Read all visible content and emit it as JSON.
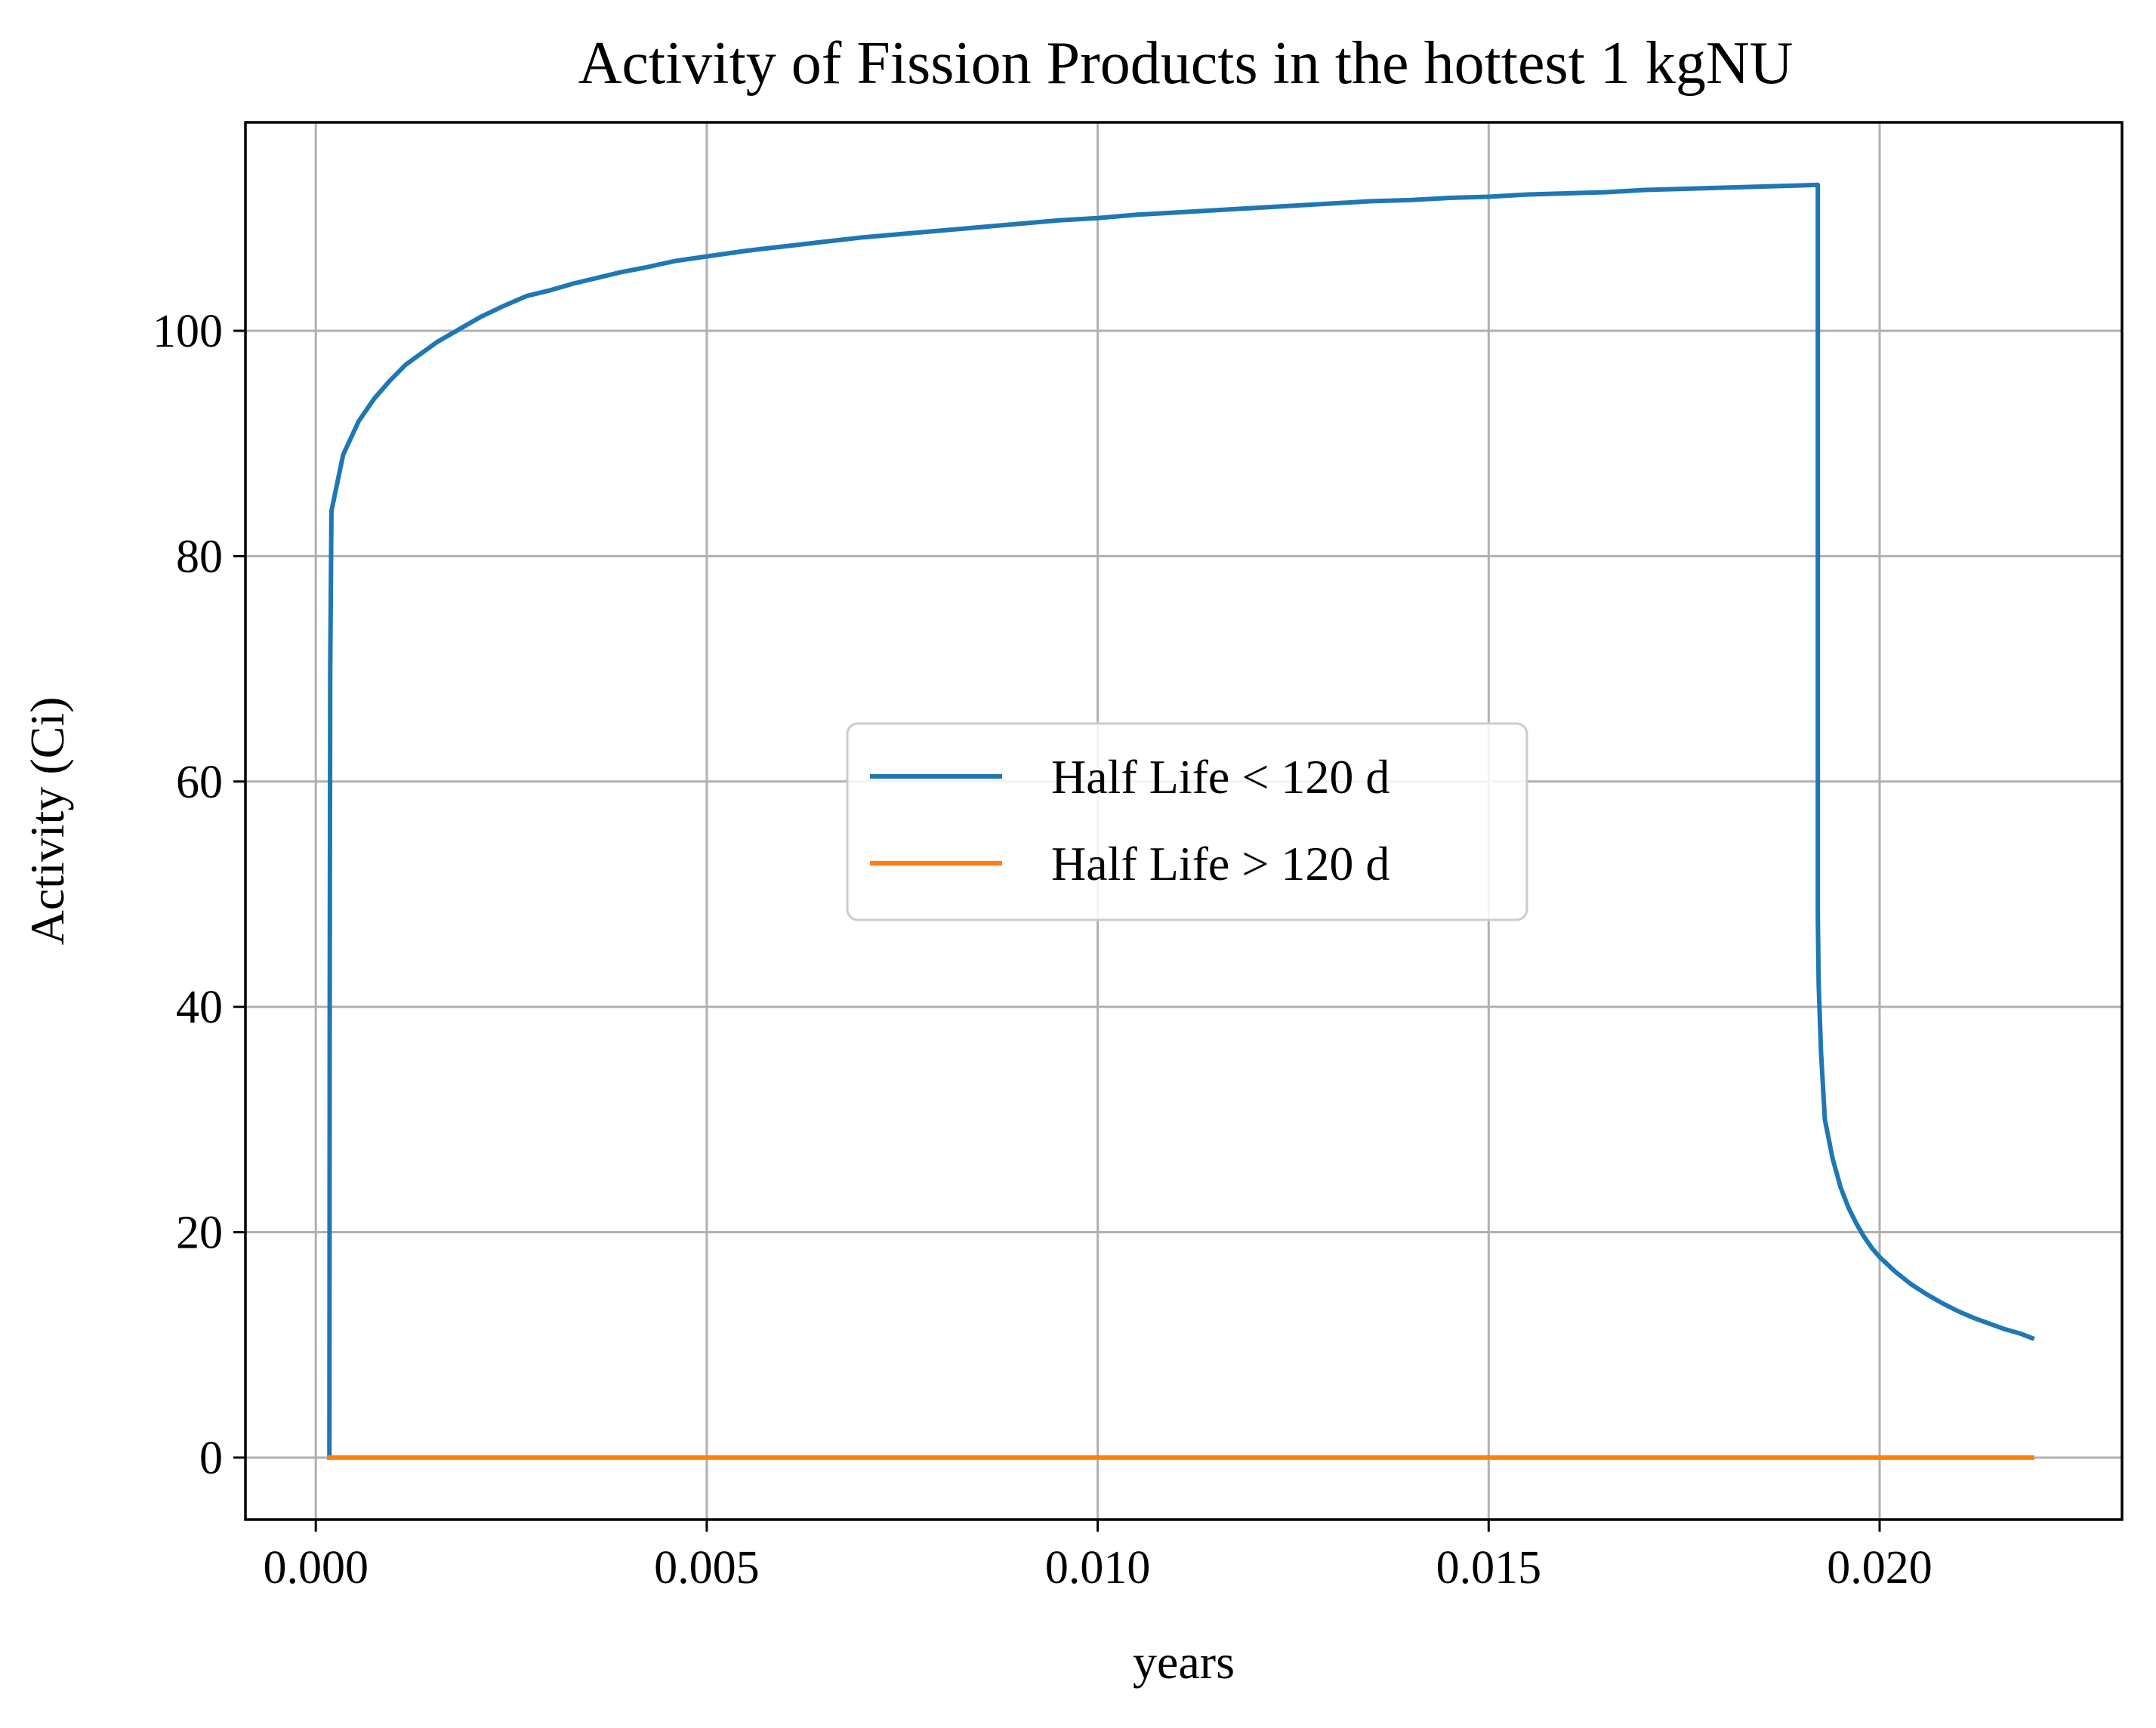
{
  "chart_data": {
    "type": "line",
    "title": "Activity of Fission Products in the hottest 1 kgNU",
    "xlabel": "years",
    "ylabel": "Activity (Ci)",
    "xlim": [
      -0.0009,
      0.0231
    ],
    "ylim": [
      -5.5,
      118.5
    ],
    "xticks": [
      0.0,
      0.005,
      0.01,
      0.015,
      0.02
    ],
    "xtick_labels": [
      "0.000",
      "0.005",
      "0.010",
      "0.015",
      "0.020"
    ],
    "yticks": [
      0,
      20,
      40,
      60,
      80,
      100
    ],
    "ytick_labels": [
      "0",
      "20",
      "40",
      "60",
      "80",
      "100"
    ],
    "grid": true,
    "legend_position": "center",
    "series": [
      {
        "name": "Half Life < 120 d",
        "color": "#1f77b4",
        "x": [
          0.000174,
          0.000178,
          0.000185,
          0.0002,
          0.00035,
          0.00055,
          0.00075,
          0.00095,
          0.00115,
          0.00135,
          0.00155,
          0.00175,
          0.0019,
          0.0021,
          0.0024,
          0.0027,
          0.003,
          0.0033,
          0.0036,
          0.0039,
          0.0042,
          0.0046,
          0.005,
          0.0055,
          0.006,
          0.0065,
          0.007,
          0.0075,
          0.008,
          0.0085,
          0.009,
          0.0095,
          0.01,
          0.0105,
          0.011,
          0.0115,
          0.012,
          0.0125,
          0.013,
          0.0135,
          0.014,
          0.0145,
          0.015,
          0.0155,
          0.016,
          0.0165,
          0.017,
          0.0175,
          0.018,
          0.0185,
          0.019,
          0.01921,
          0.01921,
          0.01922,
          0.01925,
          0.0193,
          0.0194,
          0.0195,
          0.0196,
          0.0197,
          0.0198,
          0.0199,
          0.02,
          0.0202,
          0.0204,
          0.0206,
          0.0208,
          0.021,
          0.0212,
          0.0214,
          0.0216,
          0.0218,
          0.02195
        ],
        "y": [
          0,
          40,
          70,
          84,
          89,
          92,
          94,
          95.6,
          97,
          98,
          99,
          99.8,
          100.4,
          101.2,
          102.2,
          103.1,
          103.6,
          104.2,
          104.7,
          105.2,
          105.6,
          106.2,
          106.6,
          107.1,
          107.5,
          107.9,
          108.3,
          108.6,
          108.9,
          109.2,
          109.5,
          109.8,
          110.0,
          110.3,
          110.5,
          110.7,
          110.9,
          111.1,
          111.3,
          111.5,
          111.6,
          111.8,
          111.9,
          112.1,
          112.2,
          112.3,
          112.5,
          112.6,
          112.7,
          112.8,
          112.9,
          112.95,
          48,
          42,
          36,
          30,
          26.5,
          24,
          22.2,
          20.8,
          19.6,
          18.6,
          17.8,
          16.5,
          15.4,
          14.5,
          13.7,
          13.0,
          12.4,
          11.9,
          11.4,
          11.0,
          10.6
        ]
      },
      {
        "name": "Half Life > 120 d",
        "color": "#ff7f0e",
        "x": [
          0.000174,
          0.02195
        ],
        "y": [
          0,
          0
        ]
      }
    ]
  }
}
